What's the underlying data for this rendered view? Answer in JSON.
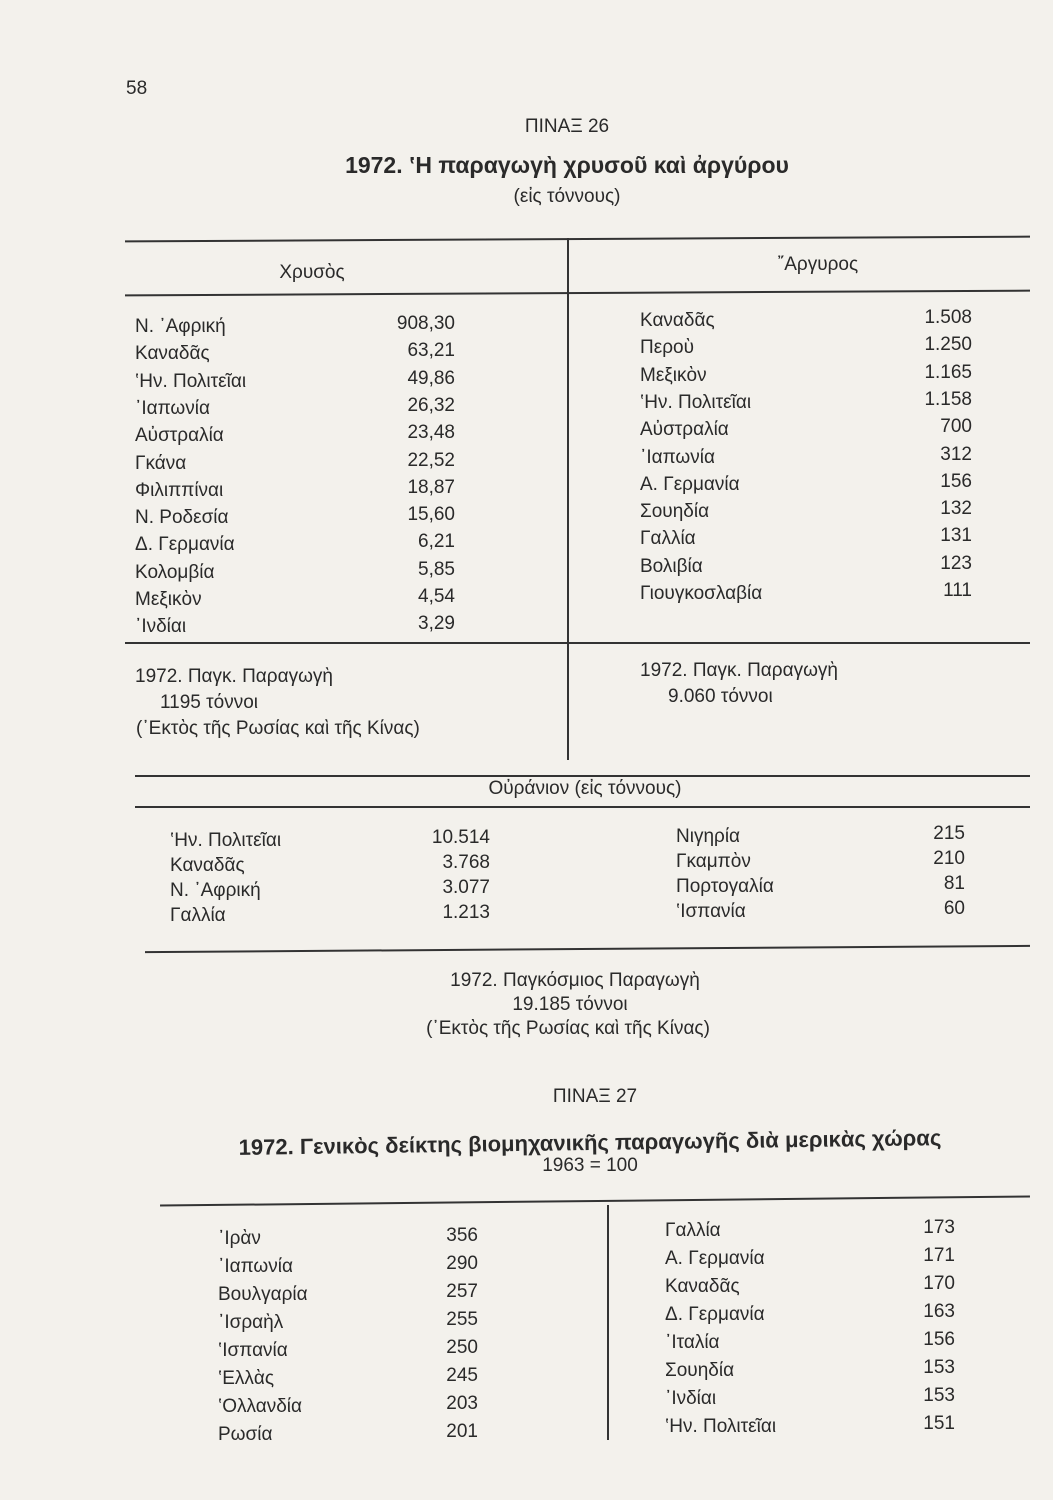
{
  "page_number": "58",
  "table26": {
    "label": "ΠΙΝΑΞ 26",
    "title": "1972. ‛Η παραγωγὴ χρυσοῦ καὶ ἀργύρου",
    "subtitle": "(εἰς τόννους)",
    "gold_header": "Χρυσὸς",
    "silver_header": "῎Αργυρος",
    "gold": [
      {
        "country": "Ν. ᾿Αφρική",
        "value": "908,30"
      },
      {
        "country": "Καναδᾶς",
        "value": "63,21"
      },
      {
        "country": "‛Ην. Πολιτεῖαι",
        "value": "49,86"
      },
      {
        "country": "᾿Ιαπωνία",
        "value": "26,32"
      },
      {
        "country": "Αὐστραλία",
        "value": "23,48"
      },
      {
        "country": "Γκάνα",
        "value": "22,52"
      },
      {
        "country": "Φιλιππίναι",
        "value": "18,87"
      },
      {
        "country": "Ν. Ροδεσία",
        "value": "15,60"
      },
      {
        "country": "Δ. Γερμανία",
        "value": "6,21"
      },
      {
        "country": "Κολομβία",
        "value": "5,85"
      },
      {
        "country": "Μεξικὸν",
        "value": "4,54"
      },
      {
        "country": "᾿Ινδίαι",
        "value": "3,29"
      }
    ],
    "silver": [
      {
        "country": "Καναδᾶς",
        "value": "1.508"
      },
      {
        "country": "Περοὺ",
        "value": "1.250"
      },
      {
        "country": "Μεξικὸν",
        "value": "1.165"
      },
      {
        "country": "‛Ην. Πολιτεῖαι",
        "value": "1.158"
      },
      {
        "country": "Αὐστραλία",
        "value": "700"
      },
      {
        "country": "᾿Ιαπωνία",
        "value": "312"
      },
      {
        "country": "Α. Γερμανία",
        "value": "156"
      },
      {
        "country": "Σουηδία",
        "value": "132"
      },
      {
        "country": "Γαλλία",
        "value": "131"
      },
      {
        "country": "Βολιβία",
        "value": "123"
      },
      {
        "country": "Γιουγκοσλαβία",
        "value": "111"
      }
    ],
    "gold_total": [
      "1972. Παγκ. Παραγωγὴ",
      "1195 τόννοι",
      "(᾿Εκτὸς τῆς Ρωσίας καὶ τῆς Κίνας)"
    ],
    "silver_total": [
      "1972. Παγκ. Παραγωγὴ",
      "9.060 τόννοι"
    ],
    "uranium_header": "Οὐράνιον (εἰς τόννους)",
    "uranium_left": [
      {
        "country": "‛Ην. Πολιτεῖαι",
        "value": "10.514"
      },
      {
        "country": "Καναδᾶς",
        "value": "3.768"
      },
      {
        "country": "Ν. ᾿Αφρική",
        "value": "3.077"
      },
      {
        "country": "Γαλλία",
        "value": "1.213"
      }
    ],
    "uranium_right": [
      {
        "country": "Νιγηρία",
        "value": "215"
      },
      {
        "country": "Γκαμπὸν",
        "value": "210"
      },
      {
        "country": "Πορτογαλία",
        "value": "81"
      },
      {
        "country": "‛Ισπανία",
        "value": "60"
      }
    ],
    "uranium_total": [
      "1972. Παγκόσμιος Παραγωγὴ",
      "19.185 τόννοι",
      "(᾿Εκτὸς τῆς Ρωσίας καὶ τῆς Κίνας)"
    ]
  },
  "table27": {
    "label": "ΠΙΝΑΞ 27",
    "title": "1972.   Γενικὸς δείκτης βιομηχανικῆς παραγωγῆς διὰ μερικὰς χώρας",
    "subtitle": "1963 = 100",
    "left": [
      {
        "country": "᾿Ιρὰν",
        "value": "356"
      },
      {
        "country": "᾿Ιαπωνία",
        "value": "290"
      },
      {
        "country": "Βουλγαρία",
        "value": "257"
      },
      {
        "country": "᾿Ισραὴλ",
        "value": "255"
      },
      {
        "country": "‛Ισπανία",
        "value": "250"
      },
      {
        "country": "‛Ελλὰς",
        "value": "245"
      },
      {
        "country": "‛Ολλανδία",
        "value": "203"
      },
      {
        "country": "Ρωσία",
        "value": "201"
      }
    ],
    "right": [
      {
        "country": "Γαλλία",
        "value": "173"
      },
      {
        "country": "Α. Γερμανία",
        "value": "171"
      },
      {
        "country": "Καναδᾶς",
        "value": "170"
      },
      {
        "country": "Δ. Γερμανία",
        "value": "163"
      },
      {
        "country": "᾿Ιταλία",
        "value": "156"
      },
      {
        "country": "Σουηδία",
        "value": "153"
      },
      {
        "country": "᾿Ινδίαι",
        "value": "153"
      },
      {
        "country": "‛Ην. Πολιτεῖαι",
        "value": "151"
      }
    ]
  }
}
